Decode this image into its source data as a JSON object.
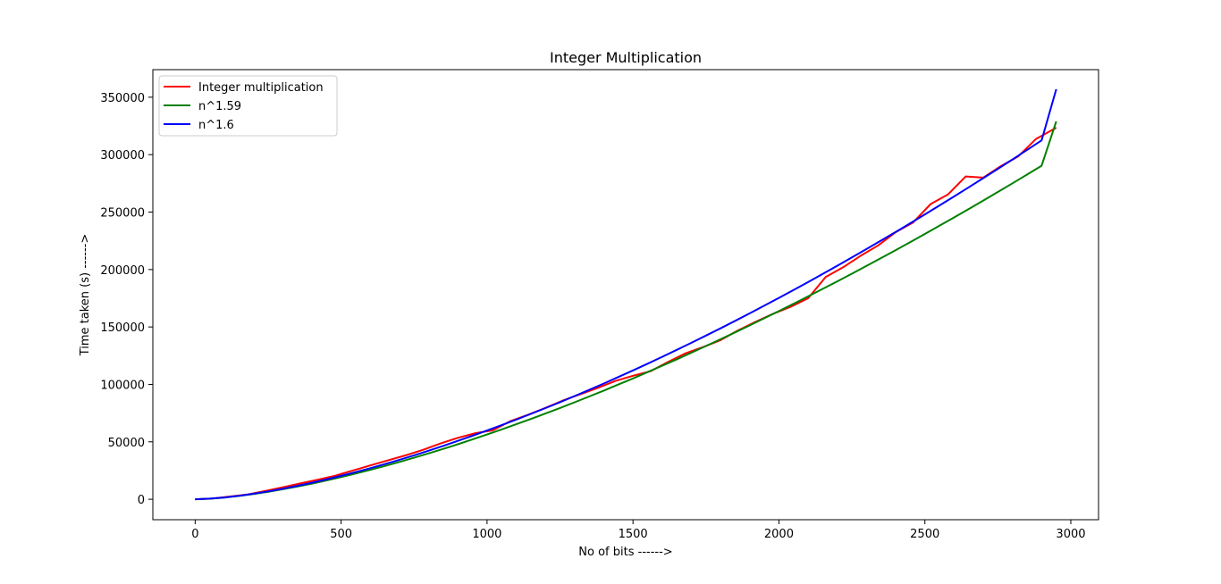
{
  "chart_data": {
    "type": "line",
    "title": "Integer Multiplication",
    "xlabel": "No of bits ------>",
    "ylabel": "Time taken (s) ------>",
    "xlim": [
      -145,
      3095
    ],
    "ylim": [
      -17800,
      374000
    ],
    "xticks": [
      0,
      500,
      1000,
      1500,
      2000,
      2500,
      3000
    ],
    "yticks": [
      0,
      50000,
      100000,
      150000,
      200000,
      250000,
      300000,
      350000
    ],
    "grid": false,
    "legend_position": "top-left",
    "series": [
      {
        "name": "Integer multiplication",
        "color": "#ff0000",
        "x": [
          0,
          60,
          120,
          180,
          240,
          300,
          360,
          420,
          480,
          540,
          600,
          660,
          720,
          780,
          840,
          900,
          960,
          1020,
          1080,
          1140,
          1200,
          1260,
          1320,
          1380,
          1440,
          1500,
          1560,
          1620,
          1680,
          1740,
          1800,
          1860,
          1920,
          1980,
          2040,
          2100,
          2160,
          2220,
          2280,
          2340,
          2400,
          2460,
          2520,
          2580,
          2640,
          2700,
          2760,
          2820,
          2880,
          2950
        ],
        "y": [
          0,
          700,
          2400,
          4200,
          7200,
          10400,
          13800,
          17000,
          20500,
          25000,
          29500,
          33800,
          38200,
          43000,
          48500,
          53500,
          57500,
          60000,
          68000,
          73500,
          79500,
          86000,
          91500,
          97000,
          103000,
          107500,
          111500,
          119500,
          127000,
          132500,
          138500,
          147000,
          154500,
          161500,
          167500,
          175000,
          193500,
          202000,
          212000,
          221000,
          232500,
          241000,
          257000,
          265500,
          281000,
          280000,
          290000,
          298500,
          313500,
          323500
        ]
      },
      {
        "name": "n^1.59",
        "color": "#008000",
        "exponent": 1.59,
        "x": [
          0,
          50,
          100,
          150,
          200,
          250,
          300,
          350,
          400,
          450,
          500,
          550,
          600,
          650,
          700,
          750,
          800,
          850,
          900,
          950,
          1000,
          1050,
          1100,
          1150,
          1200,
          1250,
          1300,
          1350,
          1400,
          1450,
          1500,
          1550,
          1600,
          1650,
          1700,
          1750,
          1800,
          1850,
          1900,
          1950,
          2000,
          2050,
          2100,
          2150,
          2200,
          2250,
          2300,
          2350,
          2400,
          2450,
          2500,
          2550,
          2600,
          2650,
          2700,
          2750,
          2800,
          2850,
          2900,
          2950
        ],
        "y": [
          0,
          503,
          1515,
          2895,
          4573,
          6508,
          8675,
          11050,
          13621,
          16371,
          19290,
          22370,
          25607,
          28987,
          32505,
          36162,
          39953,
          43873,
          47915,
          52078,
          56360,
          60757,
          65268,
          69892,
          74626,
          79467,
          84413,
          89463,
          94616,
          99869,
          105219,
          110666,
          116209,
          121846,
          127575,
          133397,
          139307,
          145307,
          151394,
          157569,
          163830,
          170175,
          176606,
          183120,
          189718,
          196394,
          203154,
          209993,
          216911,
          223910,
          230986,
          238140,
          245373,
          252682,
          260066,
          267525,
          275062,
          282673,
          290358,
          329000
        ]
      },
      {
        "name": "n^1.6",
        "color": "#0000ff",
        "exponent": 1.6,
        "x": [
          0,
          50,
          100,
          150,
          200,
          250,
          300,
          350,
          400,
          450,
          500,
          550,
          600,
          650,
          700,
          750,
          800,
          850,
          900,
          950,
          1000,
          1050,
          1100,
          1150,
          1200,
          1250,
          1300,
          1350,
          1400,
          1450,
          1500,
          1550,
          1600,
          1650,
          1700,
          1750,
          1800,
          1850,
          1900,
          1950,
          2000,
          2050,
          2100,
          2150,
          2200,
          2250,
          2300,
          2350,
          2400,
          2450,
          2500,
          2550,
          2600,
          2650,
          2700,
          2750,
          2800,
          2850,
          2900,
          2950
        ],
        "y": [
          0,
          525,
          1585,
          3036,
          4803,
          6841,
          9129,
          11638,
          14356,
          17267,
          20361,
          23628,
          27060,
          30651,
          34394,
          38286,
          42321,
          46496,
          50806,
          55249,
          59822,
          64521,
          69344,
          74290,
          79355,
          84538,
          89837,
          95250,
          100775,
          106410,
          112155,
          118006,
          123964,
          130026,
          136191,
          142459,
          148826,
          155293,
          161859,
          168521,
          175280,
          182134,
          189083,
          196124,
          203259,
          210484,
          217802,
          225209,
          232706,
          240292,
          247966,
          255727,
          263576,
          271511,
          279531,
          287638,
          295828,
          304103,
          312461,
          357000
        ]
      }
    ]
  }
}
